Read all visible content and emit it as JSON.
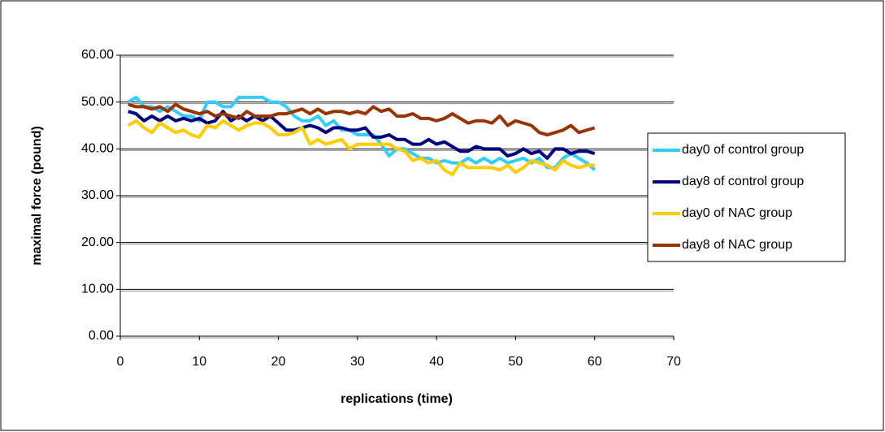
{
  "chart_data": {
    "type": "line",
    "x_label": "replications (time)",
    "y_label": "maximal force (pound)",
    "x": [
      1,
      2,
      3,
      4,
      5,
      6,
      7,
      8,
      9,
      10,
      11,
      12,
      13,
      14,
      15,
      16,
      17,
      18,
      19,
      20,
      21,
      22,
      23,
      24,
      25,
      26,
      27,
      28,
      29,
      30,
      31,
      32,
      33,
      34,
      35,
      36,
      37,
      38,
      39,
      40,
      41,
      42,
      43,
      44,
      45,
      46,
      47,
      48,
      49,
      50,
      51,
      52,
      53,
      54,
      55,
      56,
      57,
      58,
      59,
      60
    ],
    "series": [
      {
        "name": "day0 of control group",
        "color": "#33ccff",
        "values": [
          50,
          51,
          49,
          49,
          48,
          49,
          48,
          47,
          47,
          46,
          50,
          50,
          49,
          49,
          51,
          51,
          51,
          51,
          50,
          50,
          49,
          47,
          46,
          46,
          47,
          45,
          46,
          44,
          44,
          43,
          43,
          43,
          41,
          38.5,
          40,
          40,
          39,
          38,
          38,
          37,
          37.5,
          37,
          37,
          38,
          37,
          38,
          37,
          38,
          37,
          37.5,
          38,
          37,
          38,
          36,
          36,
          38,
          39,
          38,
          37,
          35.5
        ]
      },
      {
        "name": "day8 of control group",
        "color": "#000080",
        "values": [
          48,
          47.5,
          46,
          47,
          46,
          47,
          46,
          46.5,
          46,
          46.5,
          45.5,
          46,
          48,
          46,
          47,
          46,
          47,
          46,
          47,
          45.5,
          44,
          44,
          44.5,
          45,
          44.5,
          43.5,
          44.5,
          44.5,
          44,
          44,
          44.5,
          42.5,
          42.5,
          43,
          42,
          42,
          41,
          41,
          42,
          41,
          41.5,
          40.5,
          39.5,
          39.5,
          40.5,
          40,
          40,
          40,
          38.5,
          39,
          40,
          39,
          39.5,
          38,
          40,
          40,
          39,
          39.5,
          39.5,
          39
        ]
      },
      {
        "name": "day0 of NAC group",
        "color": "#ffcc00",
        "values": [
          45,
          46,
          44.5,
          43.5,
          45.5,
          44.5,
          43.5,
          44,
          43,
          42.5,
          45,
          44.5,
          46,
          45,
          44,
          45,
          45.5,
          45.5,
          44.5,
          43,
          43,
          43.5,
          44.5,
          41,
          42,
          41,
          41.5,
          42,
          40,
          41,
          41,
          41,
          41,
          41,
          40,
          39.5,
          37.5,
          38,
          37,
          37.5,
          35.5,
          34.5,
          37,
          36,
          36,
          36,
          36,
          35.5,
          36.5,
          35,
          36,
          37.5,
          37,
          36.5,
          35.5,
          37.5,
          36.5,
          36,
          36.5,
          36.5
        ]
      },
      {
        "name": "day8 of NAC group",
        "color": "#993300",
        "values": [
          49.5,
          49,
          49,
          48.5,
          49,
          48,
          49.5,
          48.5,
          48,
          47.5,
          48,
          47,
          47.5,
          47,
          46.5,
          48,
          47,
          47,
          47,
          47.5,
          47.5,
          48,
          48.5,
          47.5,
          48.5,
          47.5,
          48,
          48,
          47.5,
          48,
          47.5,
          49,
          48,
          48.5,
          47,
          47,
          47.5,
          46.5,
          46.5,
          46,
          46.5,
          47.5,
          46.5,
          45.5,
          46,
          46,
          45.5,
          47,
          45,
          46,
          45.5,
          45,
          43.5,
          43,
          43.5,
          44,
          45,
          43.5,
          44,
          44.5
        ]
      }
    ],
    "xlim": [
      0,
      70
    ],
    "xticks": [
      0,
      10,
      20,
      30,
      40,
      50,
      60,
      70
    ],
    "ylim": [
      0,
      60
    ],
    "yticks": [
      {
        "value": 0,
        "label": "0.00"
      },
      {
        "value": 10,
        "label": "10.00"
      },
      {
        "value": 20,
        "label": "20.00"
      },
      {
        "value": 30,
        "label": "30.00"
      },
      {
        "value": 40,
        "label": "40.00"
      },
      {
        "value": 50,
        "label": "50.00"
      },
      {
        "value": 60,
        "label": "60.00"
      }
    ],
    "grid": true,
    "legend": "right"
  }
}
